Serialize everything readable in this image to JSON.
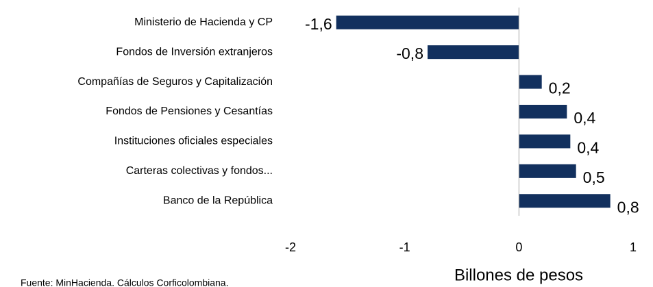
{
  "chart_data": {
    "type": "bar",
    "orientation": "horizontal",
    "categories": [
      "Ministerio de Hacienda y CP",
      "Fondos de Inversión extranjeros",
      "Compañías de Seguros y Capitalización",
      "Fondos de Pensiones y Cesantías",
      "Instituciones oficiales especiales",
      "Carteras colectivas y fondos...",
      "Banco de la República"
    ],
    "values": [
      -1.6,
      -0.8,
      0.2,
      0.42,
      0.45,
      0.5,
      0.8
    ],
    "value_labels": [
      "-1,6",
      "-0,8",
      "0,2",
      "0,4",
      "0,4",
      "0,5",
      "0,8"
    ],
    "color": "#12305e",
    "xlim": [
      -2,
      1
    ],
    "xticks": [
      -2,
      -1,
      0,
      1
    ],
    "xlabel": "Billones de pesos",
    "source": "Fuente: MinHacienda. Cálculos Corficolombiana."
  }
}
